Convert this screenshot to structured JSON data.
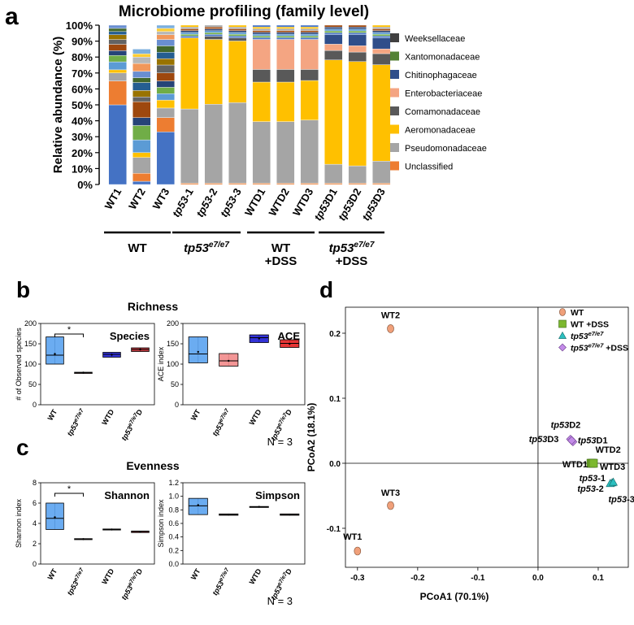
{
  "panels": {
    "a": "a",
    "b": "b",
    "c": "c",
    "d": "d"
  },
  "chart_data": [
    {
      "id": "a",
      "type": "bar",
      "title": "Microbiome profiling (family level)",
      "ylabel": "Relative abundance (%)",
      "ylim": [
        0,
        100
      ],
      "yticks": [
        "0%",
        "10%",
        "20%",
        "30%",
        "40%",
        "50%",
        "60%",
        "70%",
        "80%",
        "90%",
        "100%"
      ],
      "categories": [
        "WT1",
        "WT2",
        "WT3",
        "tp53-1",
        "tp53-2",
        "tp53-3",
        "WTD1",
        "WTD2",
        "WTD3",
        "tp53D1",
        "tp53D2",
        "tp53D3"
      ],
      "series": [
        {
          "name": "Unclassified",
          "color": "#ED7D31",
          "values": [
            0,
            6,
            0,
            0,
            0,
            0,
            0,
            0,
            0,
            0,
            0,
            0
          ]
        },
        {
          "name": "Pseudomonadaceae",
          "color": "#A5A5A5",
          "values": [
            0,
            9,
            0,
            47,
            50,
            51,
            39,
            39,
            40,
            12,
            11,
            14
          ]
        },
        {
          "name": "Aeromonadaceae",
          "color": "#FFC000",
          "values": [
            0,
            10,
            0,
            45,
            41,
            39,
            25,
            25,
            25,
            66,
            66,
            61
          ]
        },
        {
          "name": "Comamonadaceae",
          "color": "#595959",
          "values": [
            0,
            0,
            0,
            0,
            2,
            2,
            8,
            8,
            7,
            6,
            6,
            7
          ]
        },
        {
          "name": "Enterobacteriaceae",
          "color": "#F4A582",
          "values": [
            0,
            0,
            0,
            0,
            0,
            0,
            19,
            19,
            19,
            4,
            4,
            3
          ]
        },
        {
          "name": "Chitinophagaceae",
          "color": "#2F4E8A",
          "values": [
            0,
            0,
            0,
            0,
            0,
            0,
            0,
            0,
            0,
            6,
            7,
            7
          ]
        },
        {
          "name": "Xantomonadaceae",
          "color": "#548235",
          "values": [
            0,
            0,
            0,
            0,
            0,
            0,
            0,
            0,
            0,
            0,
            0,
            0
          ]
        },
        {
          "name": "Weeksellaceae",
          "color": "#404040",
          "values": [
            0,
            0,
            0,
            0,
            0,
            0,
            0,
            0,
            0,
            0,
            0,
            0
          ]
        }
      ],
      "other_colors": [
        "#4472C4",
        "#ED7D31",
        "#A5A5A5",
        "#FFC000",
        "#5B9BD5",
        "#70AD47",
        "#264478",
        "#9E480E",
        "#636363",
        "#997300",
        "#255E91",
        "#43682B",
        "#698ED0",
        "#F1975A",
        "#B7B7B7",
        "#FFCD33",
        "#7CAFDD",
        "#8CC168",
        "#333F50",
        "#C9C9C9"
      ],
      "other_values": [
        [
          50,
          15,
          5,
          2,
          5,
          4,
          3,
          4,
          3,
          3,
          2,
          2,
          2
        ],
        [
          2,
          5,
          10,
          3,
          8,
          9,
          5,
          10,
          3,
          4,
          5,
          3,
          4,
          5,
          4,
          2,
          3
        ],
        [
          33,
          9,
          6,
          5,
          4,
          4,
          4,
          5,
          5,
          4,
          4,
          4,
          4,
          3,
          2,
          2,
          2
        ]
      ],
      "groups": [
        {
          "label": "WT",
          "italic_label": "",
          "suffix": "",
          "second": ""
        },
        {
          "label": "",
          "italic_label": "tp53",
          "suffix": "e7/e7",
          "second": ""
        },
        {
          "label": "WT",
          "italic_label": "",
          "suffix": "",
          "second": "+DSS"
        },
        {
          "label": "",
          "italic_label": "tp53",
          "suffix": "e7/e7",
          "second": "+DSS"
        }
      ]
    },
    {
      "id": "b",
      "type": "box",
      "section_title": "Richness",
      "n_label": "N = 3",
      "plots": [
        {
          "title": "Species",
          "ylabel": "# of Observed species",
          "ylim": [
            0,
            200
          ],
          "yticks": [
            "0",
            "50",
            "100",
            "150",
            "200"
          ],
          "categories": [
            "WT",
            "tp53e7/e7",
            "WTD",
            "tp53e7/e7D"
          ],
          "boxes": [
            {
              "min": 100,
              "q1": 100,
              "median": 122,
              "q3": 167,
              "max": 167,
              "mean": 125,
              "color": "#5BA3F0"
            },
            {
              "min": 77,
              "q1": 77,
              "median": 79,
              "q3": 80,
              "max": 80,
              "mean": 79,
              "color": "#F28B8B"
            },
            {
              "min": 117,
              "q1": 117,
              "median": 124,
              "q3": 129,
              "max": 129,
              "mean": 123,
              "color": "#1C1CD1"
            },
            {
              "min": 131,
              "q1": 131,
              "median": 136,
              "q3": 140,
              "max": 140,
              "mean": 136,
              "color": "#C2262E"
            }
          ],
          "sig": "*"
        },
        {
          "title": "ACE",
          "ylabel": "ACE index",
          "ylim": [
            0,
            200
          ],
          "yticks": [
            "0",
            "50",
            "100",
            "150",
            "200"
          ],
          "categories": [
            "WT",
            "tp53e7/e7",
            "WTD",
            "tp53e7/e7D"
          ],
          "boxes": [
            {
              "min": 103,
              "q1": 103,
              "median": 125,
              "q3": 167,
              "max": 167,
              "mean": 130,
              "color": "#5BA3F0"
            },
            {
              "min": 95,
              "q1": 95,
              "median": 108,
              "q3": 126,
              "max": 126,
              "mean": 108,
              "color": "#F28B8B"
            },
            {
              "min": 153,
              "q1": 153,
              "median": 165,
              "q3": 172,
              "max": 172,
              "mean": 163,
              "color": "#1C1CD1"
            },
            {
              "min": 141,
              "q1": 141,
              "median": 151,
              "q3": 160,
              "max": 160,
              "mean": 150,
              "color": "#E32020"
            }
          ],
          "sig": ""
        }
      ]
    },
    {
      "id": "c",
      "type": "box",
      "section_title": "Evenness",
      "n_label": "N = 3",
      "plots": [
        {
          "title": "Shannon",
          "ylabel": "Shannon index",
          "ylim": [
            0,
            8
          ],
          "yticks": [
            "0",
            "2",
            "4",
            "6",
            "8"
          ],
          "categories": [
            "WT",
            "tp53e7/e7",
            "WTD",
            "tp53e7/e7D"
          ],
          "boxes": [
            {
              "min": 3.4,
              "q1": 3.4,
              "median": 4.5,
              "q3": 6.0,
              "max": 6.0,
              "mean": 4.6,
              "color": "#5BA3F0"
            },
            {
              "min": 2.4,
              "q1": 2.4,
              "median": 2.45,
              "q3": 2.5,
              "max": 2.5,
              "mean": 2.45,
              "color": "#F28B8B"
            },
            {
              "min": 3.35,
              "q1": 3.35,
              "median": 3.4,
              "q3": 3.45,
              "max": 3.45,
              "mean": 3.4,
              "color": "#1C1CD1"
            },
            {
              "min": 3.1,
              "q1": 3.1,
              "median": 3.2,
              "q3": 3.25,
              "max": 3.25,
              "mean": 3.18,
              "color": "#C2262E"
            }
          ],
          "sig": "*"
        },
        {
          "title": "Simpson",
          "ylabel": "Simpson index",
          "ylim": [
            0,
            1.2
          ],
          "yticks": [
            "0.0",
            "0.2",
            "0.4",
            "0.6",
            "0.8",
            "1.0",
            "1.2"
          ],
          "categories": [
            "WT",
            "tp53e7/e7",
            "WTD",
            "tp53e7/e7D"
          ],
          "boxes": [
            {
              "min": 0.73,
              "q1": 0.73,
              "median": 0.86,
              "q3": 0.97,
              "max": 0.97,
              "mean": 0.87,
              "color": "#5BA3F0"
            },
            {
              "min": 0.72,
              "q1": 0.72,
              "median": 0.73,
              "q3": 0.74,
              "max": 0.74,
              "mean": 0.73,
              "color": "#F28B8B"
            },
            {
              "min": 0.84,
              "q1": 0.84,
              "median": 0.845,
              "q3": 0.85,
              "max": 0.85,
              "mean": 0.845,
              "color": "#1C1CD1"
            },
            {
              "min": 0.72,
              "q1": 0.72,
              "median": 0.73,
              "q3": 0.74,
              "max": 0.74,
              "mean": 0.73,
              "color": "#C2262E"
            }
          ],
          "sig": ""
        }
      ]
    },
    {
      "id": "d",
      "type": "scatter",
      "xlabel": "PCoA1 (70.1%)",
      "ylabel": "PCoA2 (18.1%)",
      "xlim": [
        -0.32,
        0.15
      ],
      "ylim": [
        -0.16,
        0.24
      ],
      "xticks": [
        -0.3,
        -0.2,
        -0.1,
        0.0,
        0.1
      ],
      "yticks": [
        -0.1,
        0.0,
        0.1,
        0.2
      ],
      "xtick_labels": [
        "-0.3",
        "-0.2",
        "-0.1",
        "0.0",
        "0.1"
      ],
      "ytick_labels": [
        "-0.1",
        "0.0",
        "0.1",
        "0.2"
      ],
      "legend": [
        {
          "label": "WT",
          "italic": "",
          "sup": "",
          "suffix": "",
          "shape": "circle",
          "color": "#F0A07A"
        },
        {
          "label": "WT +DSS",
          "italic": "",
          "sup": "",
          "suffix": "",
          "shape": "square",
          "color": "#7CB82F"
        },
        {
          "label": "",
          "italic": "tp53",
          "sup": "e7/e7",
          "suffix": "",
          "shape": "triangle",
          "color": "#2BBFBF"
        },
        {
          "label": "",
          "italic": "tp53",
          "sup": "e7/e7",
          "suffix": " +DSS",
          "shape": "diamond",
          "color": "#C38BE8"
        }
      ],
      "points": [
        {
          "name": "WT1",
          "x": -0.3,
          "y": -0.135,
          "shape": "circle",
          "color": "#F0A07A"
        },
        {
          "name": "WT2",
          "x": -0.245,
          "y": 0.207,
          "shape": "circle",
          "color": "#F0A07A"
        },
        {
          "name": "WT3",
          "x": -0.245,
          "y": -0.065,
          "shape": "circle",
          "color": "#F0A07A"
        },
        {
          "name": "WTD1",
          "x": 0.088,
          "y": 0.0,
          "shape": "square",
          "color": "#7CB82F"
        },
        {
          "name": "WTD2",
          "x": 0.09,
          "y": 0.0,
          "shape": "square",
          "color": "#7CB82F"
        },
        {
          "name": "WTD3",
          "x": 0.092,
          "y": 0.0,
          "shape": "square",
          "color": "#7CB82F"
        },
        {
          "name": "tp53-1",
          "x": 0.123,
          "y": -0.03,
          "shape": "triangle",
          "color": "#2BBFBF"
        },
        {
          "name": "tp53-2",
          "x": 0.12,
          "y": -0.031,
          "shape": "triangle",
          "color": "#2BBFBF"
        },
        {
          "name": "tp53-3",
          "x": 0.125,
          "y": -0.029,
          "shape": "triangle",
          "color": "#2BBFBF"
        },
        {
          "name": "tp53D1",
          "x": 0.058,
          "y": 0.033,
          "shape": "diamond",
          "color": "#C38BE8"
        },
        {
          "name": "tp53D2",
          "x": 0.054,
          "y": 0.037,
          "shape": "diamond",
          "color": "#C38BE8"
        },
        {
          "name": "tp53D3",
          "x": 0.056,
          "y": 0.035,
          "shape": "diamond",
          "color": "#C38BE8"
        }
      ],
      "point_labels": [
        {
          "text": "WT1",
          "italic": "",
          "rest": "WT1",
          "for": "WT1"
        },
        {
          "text": "WT2",
          "italic": "",
          "rest": "WT2",
          "for": "WT2"
        },
        {
          "text": "WT3",
          "italic": "",
          "rest": "WT3",
          "for": "WT3"
        },
        {
          "text": "WTD1",
          "italic": "",
          "rest": "WTD1",
          "for": "WTD1"
        },
        {
          "text": "WTD2",
          "italic": "",
          "rest": "WTD2",
          "for": "WTD2"
        },
        {
          "text": "WTD3",
          "italic": "",
          "rest": "WTD3",
          "for": "WTD3"
        },
        {
          "text": "tp53-1",
          "italic": "tp53",
          "rest": "-1",
          "for": "tp53-1"
        },
        {
          "text": "tp53-2",
          "italic": "tp53",
          "rest": "-2",
          "for": "tp53-2"
        },
        {
          "text": "tp53-3",
          "italic": "tp53",
          "rest": "-3",
          "for": "tp53-3"
        },
        {
          "text": "tp53D1",
          "italic": "tp53",
          "rest": "D1",
          "for": "tp53D1"
        },
        {
          "text": "tp53D2",
          "italic": "tp53",
          "rest": "D2",
          "for": "tp53D2"
        },
        {
          "text": "tp53D3",
          "italic": "tp53",
          "rest": "D3",
          "for": "tp53D3"
        }
      ]
    }
  ]
}
